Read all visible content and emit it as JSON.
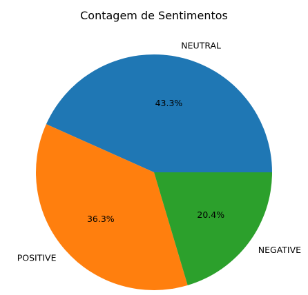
{
  "chart_data": {
    "type": "pie",
    "title": "Contagem de Sentimentos",
    "categories": [
      "NEUTRAL",
      "POSITIVE",
      "NEGATIVE"
    ],
    "values": [
      43.3,
      36.3,
      20.4
    ],
    "percent_labels": [
      "43.3%",
      "36.3%",
      "20.4%"
    ],
    "colors": [
      "#1f77b4",
      "#ff7f0e",
      "#2ca02c"
    ],
    "start_angle_deg": 0,
    "direction": "counterclockwise"
  }
}
